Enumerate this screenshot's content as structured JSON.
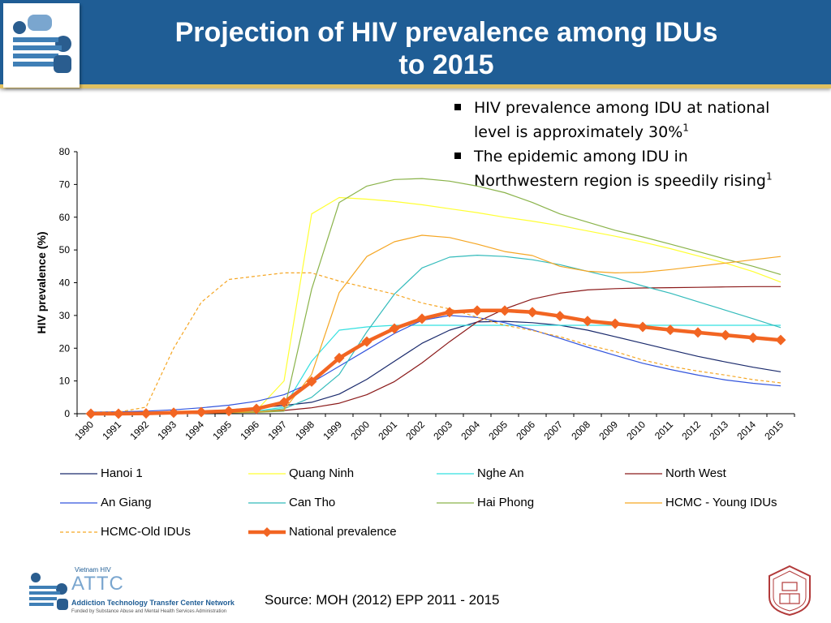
{
  "title": "Projection of HIV prevalence among IDUs to 2015",
  "title_lines": [
    "Projection of HIV prevalence among IDUs",
    "to 2015"
  ],
  "bullets": [
    {
      "line1": "HIV prevalence among IDU at national",
      "line2": "level is approximately 30%",
      "sup": "1"
    },
    {
      "line1": "The epidemic among IDU in",
      "line2": "Northwestern region is speedily rising",
      "sup": "1"
    }
  ],
  "source": "Source: MOH (2012) EPP 2011 - 2015",
  "logo": {
    "small_text": "Vietnam HIV",
    "name": "ATTC",
    "line1": "Addiction Technology Transfer Center Network",
    "line2": "Funded by Substance Abuse and Mental Health Services Administration"
  },
  "chart_data": {
    "type": "line",
    "ylabel": "HIV prevalence  (%)",
    "xlabel": "",
    "ylim": [
      0,
      80
    ],
    "yticks": [
      0,
      10,
      20,
      30,
      40,
      50,
      60,
      70,
      80
    ],
    "grid": false,
    "legend_position": "bottom",
    "categories": [
      "1990",
      "1991",
      "1992",
      "1993",
      "1994",
      "1995",
      "1996",
      "1997",
      "1998",
      "1999",
      "2000",
      "2001",
      "2002",
      "2003",
      "2004",
      "2005",
      "2006",
      "2007",
      "2008",
      "2009",
      "2010",
      "2011",
      "2012",
      "2013",
      "2014",
      "2015"
    ],
    "series": [
      {
        "name": "Hanoi 1",
        "color": "#1a2a6c",
        "dash": false,
        "width": 1.2,
        "values": [
          0.2,
          0.2,
          0.3,
          0.5,
          0.8,
          1.2,
          1.8,
          2.5,
          3.5,
          6,
          10.5,
          16,
          21.5,
          25.5,
          28,
          28.2,
          27.8,
          27,
          25.5,
          23.5,
          21.5,
          19.5,
          17.5,
          15.8,
          14.2,
          12.8
        ]
      },
      {
        "name": "Quang Ninh",
        "color": "#ffff33",
        "dash": false,
        "width": 1.2,
        "values": [
          0.2,
          0.2,
          0.3,
          0.3,
          0.4,
          0.5,
          1,
          10,
          61,
          66,
          65.5,
          64.8,
          63.8,
          62.6,
          61.4,
          60,
          58.8,
          57.4,
          55.8,
          54.2,
          52.4,
          50.4,
          48.2,
          46,
          43.4,
          40.2
        ]
      },
      {
        "name": "Nghe An",
        "color": "#33e0e0",
        "dash": false,
        "width": 1.2,
        "values": [
          0.2,
          0.2,
          0.3,
          0.3,
          0.4,
          0.5,
          0.8,
          2,
          16,
          25.5,
          26.5,
          27,
          27,
          27,
          27,
          27,
          27,
          27,
          27,
          27,
          27,
          27,
          27,
          27,
          27,
          27
        ]
      },
      {
        "name": "North West",
        "color": "#8b1a1a",
        "dash": false,
        "width": 1.2,
        "values": [
          0.1,
          0.1,
          0.1,
          0.2,
          0.2,
          0.3,
          0.5,
          1,
          1.8,
          3.2,
          5.8,
          9.8,
          15.5,
          22,
          28,
          32,
          35,
          36.8,
          37.8,
          38.2,
          38.4,
          38.5,
          38.6,
          38.7,
          38.8,
          38.8
        ]
      },
      {
        "name": "An Giang",
        "color": "#3355dd",
        "dash": false,
        "width": 1.2,
        "values": [
          0.5,
          0.6,
          0.8,
          1.2,
          1.8,
          2.6,
          3.8,
          5.8,
          9.5,
          14.5,
          19.5,
          24.5,
          28.5,
          30,
          29.4,
          27.8,
          25.6,
          23,
          20.3,
          17.8,
          15.4,
          13.5,
          11.8,
          10.3,
          9.3,
          8.5
        ]
      },
      {
        "name": "Can Tho",
        "color": "#33bbbb",
        "dash": false,
        "width": 1.2,
        "values": [
          0.2,
          0.2,
          0.2,
          0.3,
          0.3,
          0.4,
          0.6,
          1.5,
          5,
          12,
          25,
          36.5,
          44.5,
          47.8,
          48.4,
          48,
          47,
          45.5,
          43.5,
          41.5,
          39,
          36.8,
          34.2,
          31.6,
          29,
          26.3
        ]
      },
      {
        "name": "Hai Phong",
        "color": "#8ab34a",
        "dash": false,
        "width": 1.2,
        "values": [
          0.2,
          0.2,
          0.2,
          0.2,
          0.3,
          0.3,
          0.4,
          0.8,
          38,
          64.5,
          69.5,
          71.5,
          71.8,
          71,
          69.5,
          67.5,
          64.5,
          61,
          58.5,
          56,
          54,
          51.8,
          49.5,
          47.2,
          45,
          42.5
        ]
      },
      {
        "name": "HCMC - Young IDUs",
        "color": "#f5a623",
        "dash": false,
        "width": 1.2,
        "values": [
          0.2,
          0.2,
          0.2,
          0.3,
          0.3,
          0.4,
          0.6,
          1.2,
          12,
          37,
          48,
          52.5,
          54.5,
          53.8,
          51.8,
          49.5,
          48.3,
          45,
          43.5,
          43,
          43.2,
          44,
          45,
          46,
          47,
          48
        ]
      },
      {
        "name": "HCMC-Old IDUs",
        "color": "#f5a623",
        "dash": true,
        "width": 1.2,
        "values": [
          0.5,
          0.5,
          2,
          20,
          34,
          41,
          42,
          43,
          43,
          40.5,
          38.5,
          36.5,
          33.8,
          32,
          29.5,
          27,
          25.4,
          23.5,
          21,
          19,
          16.4,
          14.5,
          13,
          11.8,
          10.4,
          9.4
        ]
      },
      {
        "name": "National prevalence",
        "color": "#f26522",
        "dash": false,
        "width": 4.5,
        "marker": "diamond",
        "values": [
          0,
          0,
          0.1,
          0.3,
          0.5,
          0.8,
          1.5,
          3.5,
          9.8,
          17,
          22,
          26,
          29,
          31,
          31.5,
          31.5,
          31,
          29.8,
          28.3,
          27.5,
          26.5,
          25.6,
          24.8,
          24,
          23.2,
          22.5
        ]
      }
    ]
  },
  "colors": {
    "header": "#1f5d95",
    "accent": "#e0c060"
  }
}
